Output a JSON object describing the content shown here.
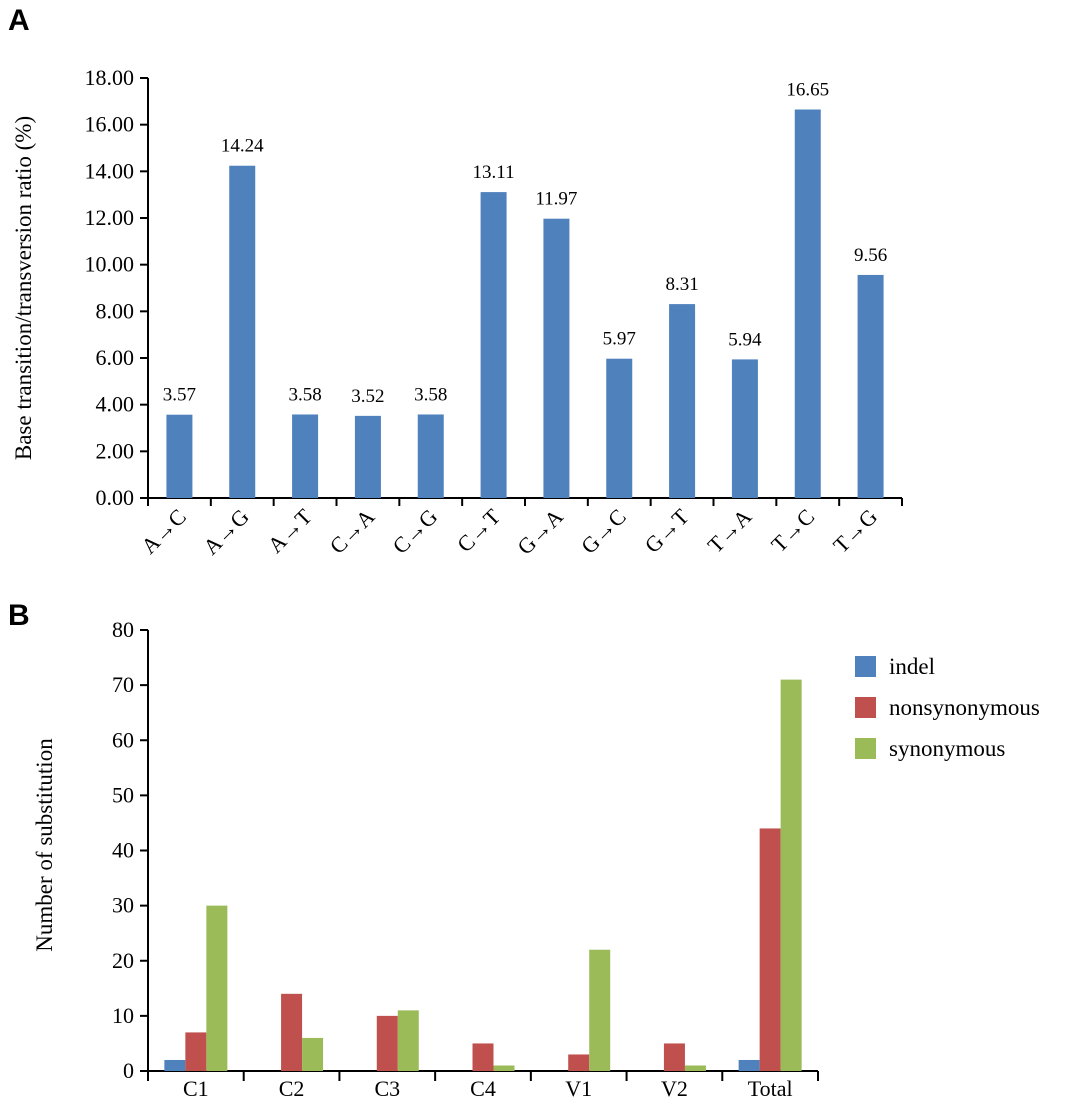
{
  "chart_data": [
    {
      "panel": "A",
      "type": "bar",
      "title": "",
      "xlabel": "",
      "ylabel": "Base transition/transversion ratio (%)",
      "ylim": [
        0,
        18
      ],
      "yticks": [
        "0.00",
        "2.00",
        "4.00",
        "6.00",
        "8.00",
        "10.00",
        "12.00",
        "14.00",
        "16.00",
        "18.00"
      ],
      "categories": [
        "A→C",
        "A→G",
        "A→T",
        "C→A",
        "C→G",
        "C→T",
        "G→A",
        "G→C",
        "G→T",
        "T→A",
        "T→C",
        "T→G"
      ],
      "values": [
        3.57,
        14.24,
        3.58,
        3.52,
        3.58,
        13.11,
        11.97,
        5.97,
        8.31,
        5.94,
        16.65,
        9.56
      ],
      "value_labels": [
        "3.57",
        "14.24",
        "3.58",
        "3.52",
        "3.58",
        "13.11",
        "11.97",
        "5.97",
        "8.31",
        "5.94",
        "16.65",
        "9.56"
      ],
      "color": "#4f81bd"
    },
    {
      "panel": "B",
      "type": "bar",
      "title": "",
      "xlabel": "",
      "ylabel": "Number of substitution",
      "ylim": [
        0,
        80
      ],
      "yticks": [
        "0",
        "10",
        "20",
        "30",
        "40",
        "50",
        "60",
        "70",
        "80"
      ],
      "categories": [
        "C1",
        "C2",
        "C3",
        "C4",
        "V1",
        "V2",
        "Total"
      ],
      "series": [
        {
          "name": "indel",
          "color": "#4f81bd",
          "values": [
            2,
            0,
            0,
            0,
            0,
            0,
            2
          ]
        },
        {
          "name": "nonsynonymous",
          "color": "#c0504d",
          "values": [
            7,
            14,
            10,
            5,
            3,
            5,
            44
          ]
        },
        {
          "name": "synonymous",
          "color": "#9bbb59",
          "values": [
            30,
            6,
            11,
            1,
            22,
            1,
            71
          ]
        }
      ],
      "legend_position": "right"
    }
  ]
}
